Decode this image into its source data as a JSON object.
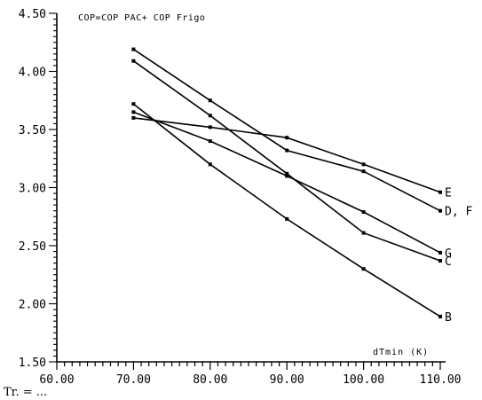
{
  "chart_data": {
    "type": "line",
    "title": "COP=COP PAC+ COP Frigo",
    "xlabel": "dTmin   (K)",
    "ylabel": "",
    "xlim": [
      60,
      110
    ],
    "ylim": [
      1.5,
      4.5
    ],
    "x_ticks": [
      60,
      70,
      80,
      90,
      100,
      110
    ],
    "x_tick_labels": [
      "60.00",
      "70.00",
      "80.00",
      "90.00",
      "100.00",
      "110.00"
    ],
    "y_ticks": [
      1.5,
      2.0,
      2.5,
      3.0,
      3.5,
      4.0,
      4.5
    ],
    "y_tick_labels": [
      "1.50",
      "2.00",
      "2.50",
      "3.00",
      "3.50",
      "4.00",
      "4.50"
    ],
    "grid": false,
    "x": [
      70,
      80,
      90,
      100,
      110
    ],
    "series": [
      {
        "name": "E",
        "values": [
          3.6,
          3.52,
          3.43,
          3.2,
          2.96
        ]
      },
      {
        "name": "D, F",
        "values": [
          4.19,
          3.75,
          3.32,
          3.14,
          2.8
        ]
      },
      {
        "name": "G",
        "values": [
          3.65,
          3.4,
          3.1,
          2.79,
          2.44
        ]
      },
      {
        "name": "C",
        "values": [
          4.09,
          3.62,
          3.12,
          2.61,
          2.37
        ]
      },
      {
        "name": "B",
        "values": [
          3.72,
          3.2,
          2.73,
          2.3,
          1.89
        ]
      }
    ],
    "footer_text": "Tr. = ..."
  }
}
